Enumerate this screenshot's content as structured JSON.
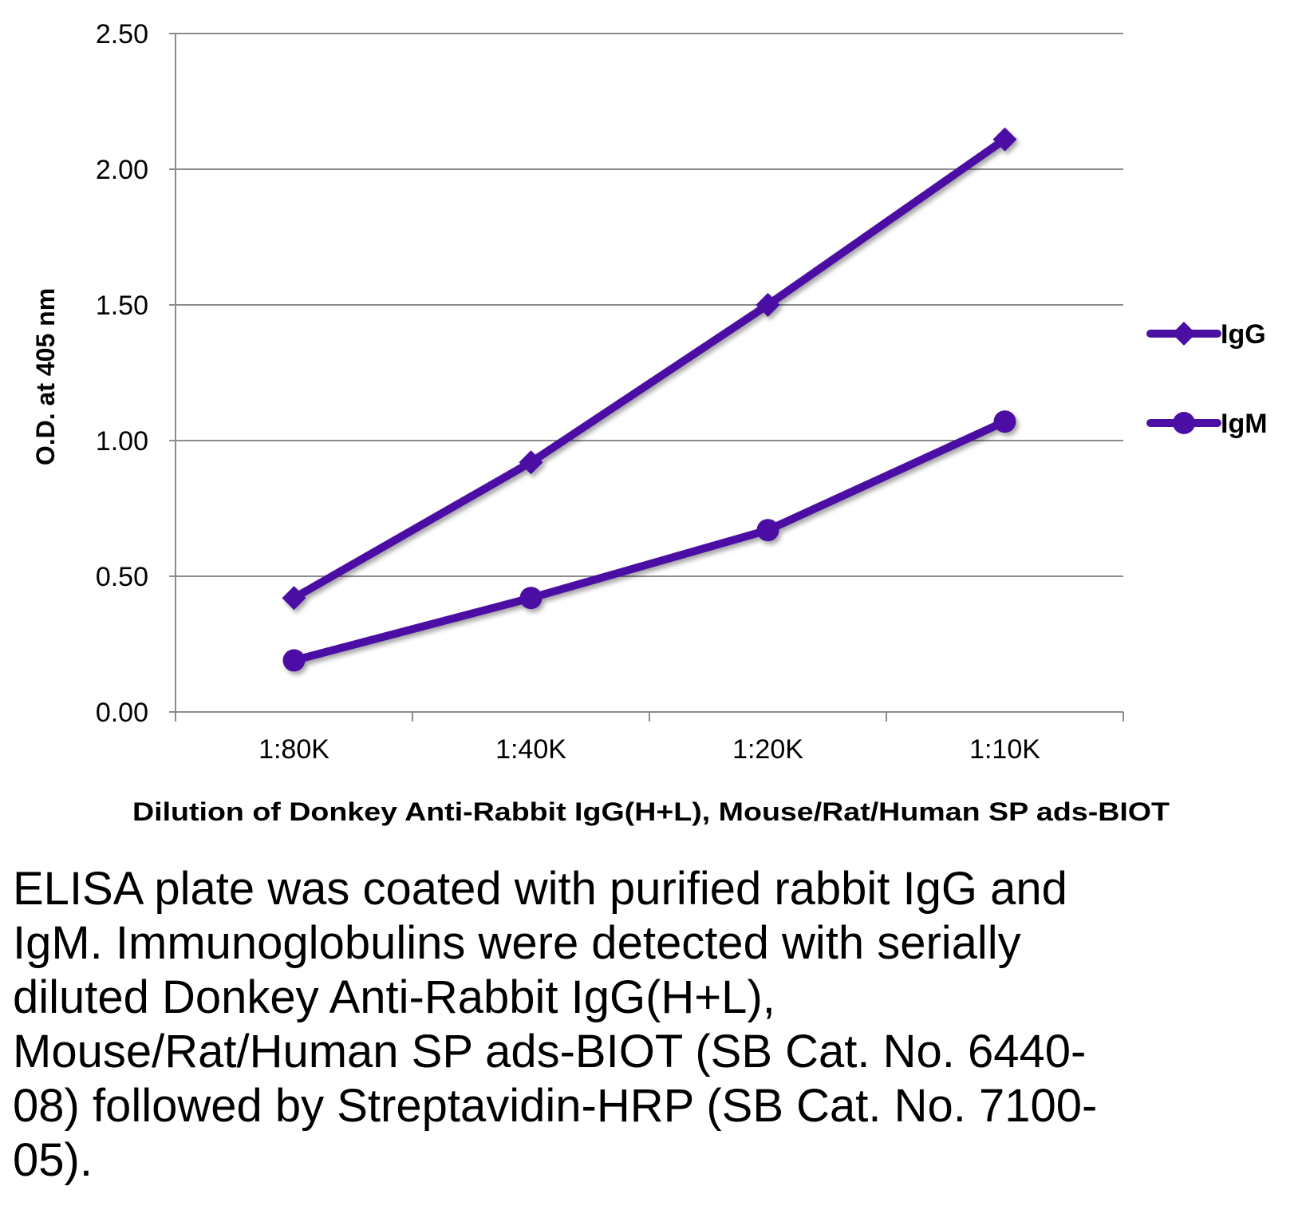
{
  "chart_data": {
    "type": "line",
    "title": "",
    "xlabel": "Dilution of Donkey Anti-Rabbit IgG(H+L), Mouse/Rat/Human SP ads-BIOT",
    "ylabel": "O.D. at 405 nm",
    "categories": [
      "1:80K",
      "1:40K",
      "1:20K",
      "1:10K"
    ],
    "ylim": [
      0,
      2.5
    ],
    "yticks": [
      "0.00",
      "0.50",
      "1.00",
      "1.50",
      "2.00",
      "2.50"
    ],
    "grid": true,
    "legend_position": "right",
    "series": [
      {
        "name": "IgG",
        "marker": "diamond",
        "color": "#4b0fa3",
        "values": [
          0.42,
          0.92,
          1.5,
          2.11
        ]
      },
      {
        "name": "IgM",
        "marker": "circle",
        "color": "#4b0fa3",
        "values": [
          0.19,
          0.42,
          0.67,
          1.07
        ]
      }
    ]
  },
  "caption": "ELISA plate was coated with purified rabbit IgG and IgM.  Immunoglobulins were detected with serially diluted Donkey Anti-Rabbit IgG(H+L), Mouse/Rat/Human SP ads-BIOT (SB Cat. No. 6440-08) followed by Streptavidin-HRP (SB Cat. No. 7100-05)."
}
